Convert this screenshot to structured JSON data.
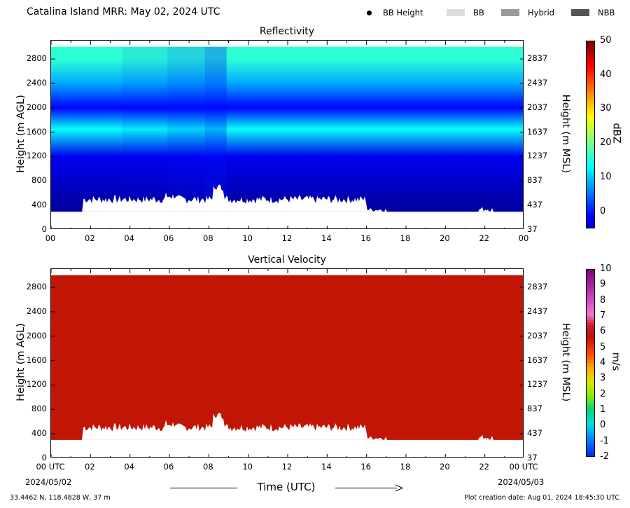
{
  "header": {
    "title": "Catalina Island MRR:  May 02, 2024 UTC"
  },
  "legend": {
    "items": [
      {
        "label": "BB Height",
        "kind": "dot",
        "color": "#000000"
      },
      {
        "label": "BB",
        "kind": "swatch",
        "color": "#dcdcdc"
      },
      {
        "label": "Hybrid",
        "kind": "swatch",
        "color": "#9a9a9a"
      },
      {
        "label": "NBB",
        "kind": "swatch",
        "color": "#555555"
      }
    ]
  },
  "chart_data": [
    {
      "type": "heatmap",
      "title": "Reflectivity",
      "ylabel": "Height (m AGL)",
      "ylabel_right": "Height (m MSL)",
      "ylim": [
        0,
        3100
      ],
      "xlim": [
        0,
        24
      ],
      "yticks": [
        "0",
        "400",
        "800",
        "1200",
        "1600",
        "2000",
        "2400",
        "2800"
      ],
      "yticks_right": [
        "37",
        "437",
        "837",
        "1237",
        "1637",
        "2037",
        "2437",
        "2837"
      ],
      "xticks": [
        "00",
        "02",
        "04",
        "06",
        "08",
        "10",
        "12",
        "14",
        "16",
        "18",
        "20",
        "22",
        "00"
      ],
      "colorbar": {
        "label": "dBZ",
        "range": [
          -5,
          50
        ],
        "ticks": [
          "50",
          "40",
          "30",
          "20",
          "10",
          "0"
        ]
      },
      "data_extent_m": [
        300,
        3000
      ],
      "layers": [
        {
          "height_m": 2800,
          "dbz": 18
        },
        {
          "height_m": 2400,
          "dbz": 11
        },
        {
          "height_m": 2000,
          "dbz": 2
        },
        {
          "height_m": 1650,
          "dbz": 16
        },
        {
          "height_m": 1200,
          "dbz": 1
        },
        {
          "height_m": 800,
          "dbz": -1
        },
        {
          "height_m": 400,
          "dbz": -3
        }
      ]
    },
    {
      "type": "heatmap",
      "title": "Vertical Velocity",
      "ylabel": "Height (m AGL)",
      "ylabel_right": "Height (m MSL)",
      "ylim": [
        0,
        3100
      ],
      "xlim": [
        0,
        24
      ],
      "yticks": [
        "0",
        "400",
        "800",
        "1200",
        "1600",
        "2000",
        "2400",
        "2800"
      ],
      "yticks_right": [
        "37",
        "437",
        "837",
        "1237",
        "1637",
        "2037",
        "2437",
        "2837"
      ],
      "xticks": [
        "00 UTC",
        "02",
        "04",
        "06",
        "08",
        "10",
        "12",
        "14",
        "16",
        "18",
        "20",
        "22",
        "00 UTC"
      ],
      "colorbar": {
        "label": "m/s",
        "range": [
          -2,
          10
        ],
        "ticks": [
          "10",
          "9",
          "8",
          "7",
          "6",
          "5",
          "4",
          "3",
          "2",
          "1",
          "0",
          "-1",
          "-2"
        ]
      },
      "fill_color": "#c11506",
      "data_extent_m": [
        300,
        3000
      ]
    }
  ],
  "footer": {
    "date_start": "2024/05/02",
    "date_end": "2024/05/03",
    "xlabel": "Time (UTC)",
    "location": "33.4462 N, 118.4828 W, 37 m",
    "creation": "Plot creation date: Aug 01, 2024 18:45:30 UTC"
  }
}
